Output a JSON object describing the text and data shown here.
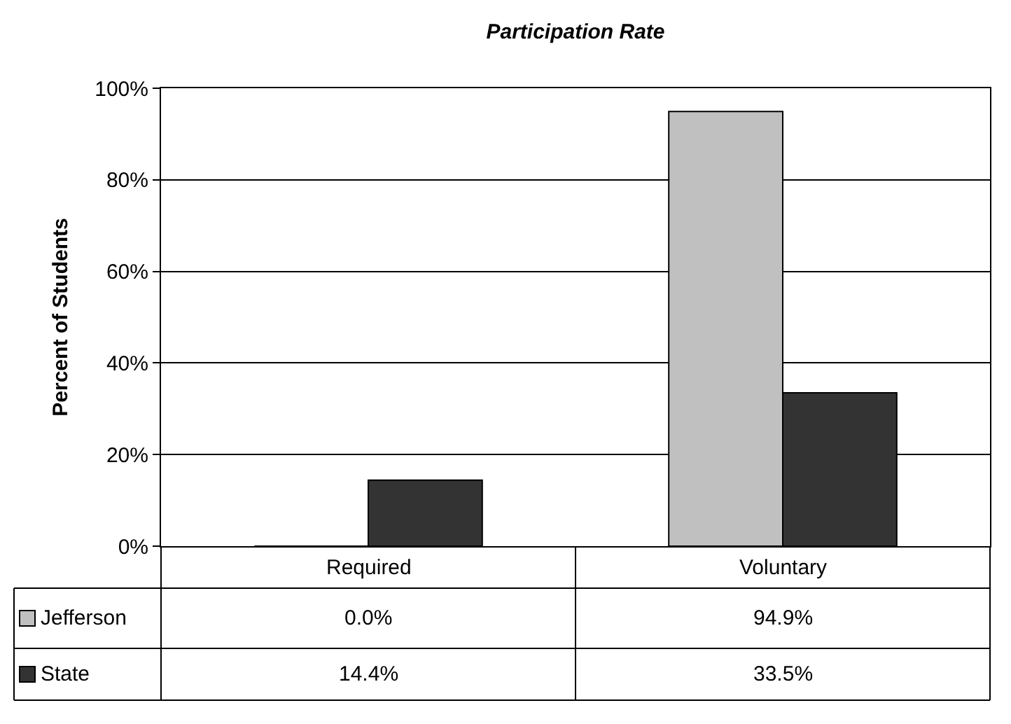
{
  "chart_data": {
    "type": "bar",
    "title": "Participation Rate",
    "ylabel": "Percent of Students",
    "categories": [
      "Required",
      "Voluntary"
    ],
    "series": [
      {
        "name": "Jefferson",
        "color": "#c0c0c0",
        "values": [
          0.0,
          94.9
        ],
        "value_labels": [
          "0.0%",
          "94.9%"
        ]
      },
      {
        "name": "State",
        "color": "#333333",
        "values": [
          14.4,
          33.5
        ],
        "value_labels": [
          "14.4%",
          "33.5%"
        ]
      }
    ],
    "ylim": [
      0,
      100
    ],
    "yticks": [
      {
        "value": 0,
        "label": "0%"
      },
      {
        "value": 20,
        "label": "20%"
      },
      {
        "value": 40,
        "label": "40%"
      },
      {
        "value": 60,
        "label": "60%"
      },
      {
        "value": 80,
        "label": "80%"
      },
      {
        "value": 100,
        "label": "100%"
      }
    ],
    "grid": "y",
    "legend": "bottom"
  }
}
